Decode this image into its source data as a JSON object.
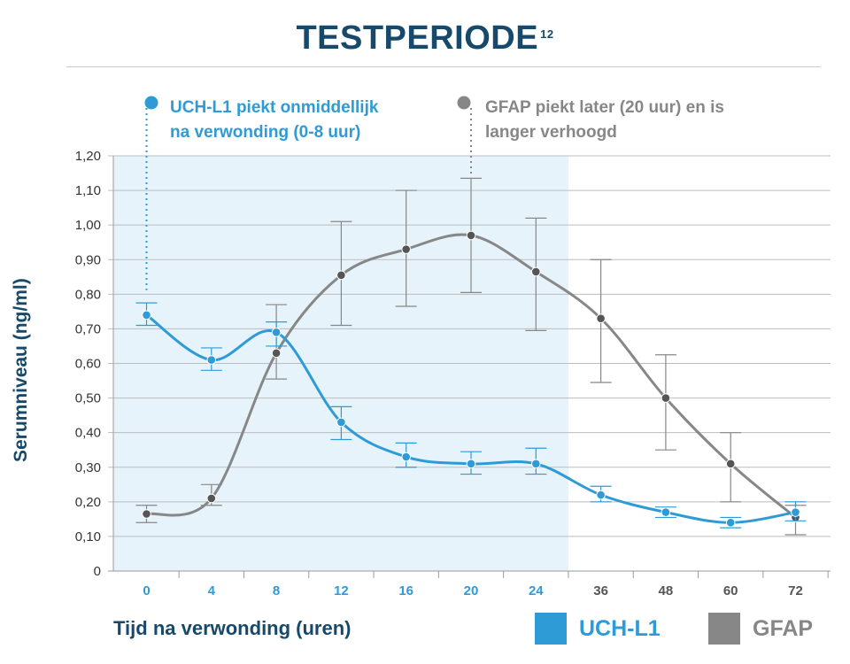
{
  "title": "TESTPERIODE",
  "title_superscript": "12",
  "colors": {
    "uchl1": "#2e9bd6",
    "gfap": "#878787",
    "title": "#17496a",
    "shade": "#e6f3fb",
    "grid": "#bdbdbd"
  },
  "annotations": {
    "uchl1": [
      "UCH-L1 piekt onmiddellijk",
      "na verwonding (0-8 uur)"
    ],
    "gfap": [
      "GFAP piekt later (20 uur) en is",
      "langer verhoogd"
    ]
  },
  "chart_data": {
    "type": "line",
    "title": "TESTPERIODE",
    "xlabel": "Tijd na verwonding (uren)",
    "ylabel": "Serumniveau (ng/ml)",
    "categories": [
      "0",
      "4",
      "8",
      "12",
      "16",
      "20",
      "24",
      "36",
      "48",
      "60",
      "72"
    ],
    "highlighted_categories": [
      "0",
      "4",
      "8",
      "12",
      "16",
      "20",
      "24"
    ],
    "y_ticks": [
      "0",
      "0,10",
      "0,20",
      "0,30",
      "0,40",
      "0,50",
      "0,60",
      "0,70",
      "0,80",
      "0,90",
      "1,00",
      "1,10",
      "1,20"
    ],
    "ylim": [
      0,
      1.2
    ],
    "series": [
      {
        "name": "UCH-L1",
        "values": [
          0.74,
          0.61,
          0.69,
          0.43,
          0.33,
          0.31,
          0.31,
          0.22,
          0.17,
          0.14,
          0.17
        ],
        "error_low": [
          0.71,
          0.58,
          0.65,
          0.38,
          0.3,
          0.28,
          0.28,
          0.2,
          0.155,
          0.125,
          0.145
        ],
        "error_high": [
          0.775,
          0.645,
          0.72,
          0.475,
          0.37,
          0.345,
          0.355,
          0.245,
          0.185,
          0.155,
          0.2
        ]
      },
      {
        "name": "GFAP",
        "values": [
          0.165,
          0.21,
          0.63,
          0.855,
          0.93,
          0.97,
          0.865,
          0.73,
          0.5,
          0.31,
          0.155
        ],
        "error_low": [
          0.14,
          0.19,
          0.555,
          0.71,
          0.765,
          0.805,
          0.695,
          0.545,
          0.35,
          0.2,
          0.105
        ],
        "error_high": [
          0.19,
          0.25,
          0.77,
          1.01,
          1.1,
          1.135,
          1.02,
          0.9,
          0.625,
          0.4,
          0.19
        ]
      }
    ],
    "legend": [
      "UCH-L1",
      "GFAP"
    ]
  }
}
